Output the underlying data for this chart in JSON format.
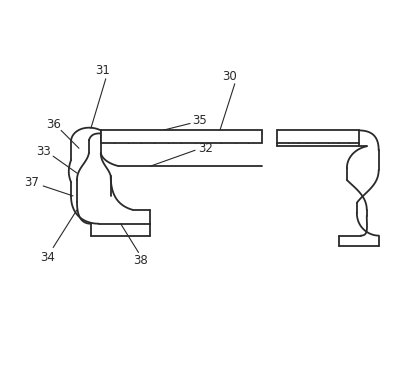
{
  "bg_color": "#ffffff",
  "line_color": "#2a2a2a",
  "lw": 1.3,
  "lw_thin": 0.9,
  "lw_label": 0.8,
  "fig_width": 4.11,
  "fig_height": 3.68,
  "dpi": 100
}
